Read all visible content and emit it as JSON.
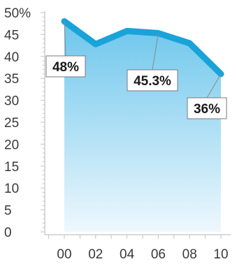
{
  "chart_data": {
    "type": "area",
    "x": [
      "00",
      "02",
      "04",
      "06",
      "08",
      "10"
    ],
    "values": [
      48,
      42.8,
      45.8,
      45.3,
      43,
      36
    ],
    "y_ticks": [
      "50%",
      "45",
      "40",
      "35",
      "30",
      "25",
      "20",
      "15",
      "10",
      "5",
      "0"
    ],
    "ylim": [
      0,
      50
    ],
    "grid": false,
    "title": "",
    "xlabel": "",
    "ylabel": "",
    "annotations": [
      {
        "index": 0,
        "label": "48%"
      },
      {
        "index": 3,
        "label": "45.3%"
      },
      {
        "index": 5,
        "label": "36%"
      }
    ],
    "colors": {
      "line": "#1aa3d9",
      "fill_top": "#6cc6ec",
      "fill_bottom": "#eef8fd",
      "text": "#3a3a3a"
    }
  }
}
